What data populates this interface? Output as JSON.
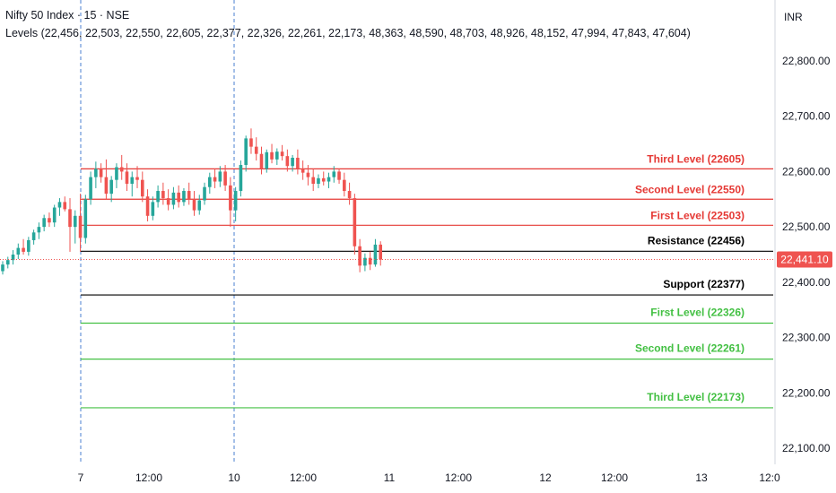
{
  "header": {
    "title": "Nifty 50 Index · 15 · NSE",
    "levels_text": "Levels (22,456, 22,503, 22,550, 22,605, 22,377, 22,326, 22,261, 22,173, 48,363, 48,590, 48,703, 48,926, 48,152, 47,994, 47,843, 47,604)"
  },
  "axis": {
    "currency": "INR"
  },
  "chart_data": {
    "type": "candlestick",
    "title": "Nifty 50 Index · 15 · NSE",
    "ylim": [
      22060,
      22870
    ],
    "y_ticks": [
      "22,800.00",
      "22,700.00",
      "22,600.00",
      "22,500.00",
      "22,400.00",
      "22,300.00",
      "22,200.00",
      "22,100.00"
    ],
    "y_tick_values": [
      22800,
      22700,
      22600,
      22500,
      22400,
      22300,
      22200,
      22100
    ],
    "x_ticks": [
      "7",
      "12:00",
      "10",
      "12:00",
      "11",
      "12:00",
      "12",
      "12:00",
      "13",
      "12:0"
    ],
    "session_separators": [
      "7",
      "10"
    ],
    "last_price": "22,441.10",
    "last_price_value": 22441.1,
    "colors": {
      "up": "#26a69a",
      "down": "#ef5350",
      "resistance": "#e53935",
      "support": "#43c043",
      "pivot": "#000000",
      "separator": "#4a7fd1"
    },
    "levels": [
      {
        "label": "Third Level (22605)",
        "value": 22605,
        "kind": "resistance"
      },
      {
        "label": "Second Level (22550)",
        "value": 22550,
        "kind": "resistance"
      },
      {
        "label": "First Level (22503)",
        "value": 22503,
        "kind": "resistance"
      },
      {
        "label": "Resistance (22456)",
        "value": 22456,
        "kind": "pivot"
      },
      {
        "label": "Support (22377)",
        "value": 22377,
        "kind": "pivot"
      },
      {
        "label": "First Level (22326)",
        "value": 22326,
        "kind": "support"
      },
      {
        "label": "Second Level (22261)",
        "value": 22261,
        "kind": "support"
      },
      {
        "label": "Third Level (22173)",
        "value": 22173,
        "kind": "support"
      }
    ],
    "candles": [
      [
        22420,
        22438,
        22414,
        22432
      ],
      [
        22432,
        22446,
        22425,
        22440
      ],
      [
        22440,
        22458,
        22432,
        22450
      ],
      [
        22450,
        22470,
        22442,
        22462
      ],
      [
        22462,
        22478,
        22450,
        22455
      ],
      [
        22455,
        22482,
        22448,
        22476
      ],
      [
        22476,
        22495,
        22468,
        22490
      ],
      [
        22490,
        22508,
        22478,
        22500
      ],
      [
        22500,
        22522,
        22492,
        22516
      ],
      [
        22516,
        22526,
        22500,
        22508
      ],
      [
        22508,
        22540,
        22500,
        22535
      ],
      [
        22535,
        22552,
        22520,
        22545
      ],
      [
        22545,
        22555,
        22528,
        22532
      ],
      [
        22532,
        22552,
        22455,
        22500
      ],
      [
        22500,
        22530,
        22470,
        22520
      ],
      [
        22520,
        22560,
        22455,
        22480
      ],
      [
        22480,
        22558,
        22470,
        22550
      ],
      [
        22550,
        22600,
        22540,
        22590
      ],
      [
        22590,
        22618,
        22570,
        22605
      ],
      [
        22605,
        22615,
        22580,
        22590
      ],
      [
        22590,
        22622,
        22550,
        22560
      ],
      [
        22560,
        22592,
        22545,
        22585
      ],
      [
        22585,
        22615,
        22570,
        22608
      ],
      [
        22608,
        22630,
        22585,
        22600
      ],
      [
        22600,
        22615,
        22565,
        22578
      ],
      [
        22578,
        22600,
        22555,
        22590
      ],
      [
        22590,
        22610,
        22570,
        22585
      ],
      [
        22585,
        22600,
        22545,
        22555
      ],
      [
        22555,
        22568,
        22510,
        22520
      ],
      [
        22520,
        22555,
        22512,
        22545
      ],
      [
        22545,
        22575,
        22535,
        22565
      ],
      [
        22565,
        22580,
        22540,
        22552
      ],
      [
        22552,
        22568,
        22530,
        22540
      ],
      [
        22540,
        22572,
        22532,
        22562
      ],
      [
        22562,
        22575,
        22535,
        22545
      ],
      [
        22545,
        22570,
        22538,
        22565
      ],
      [
        22565,
        22580,
        22540,
        22550
      ],
      [
        22550,
        22565,
        22520,
        22530
      ],
      [
        22530,
        22558,
        22522,
        22548
      ],
      [
        22548,
        22580,
        22540,
        22572
      ],
      [
        22572,
        22598,
        22560,
        22590
      ],
      [
        22590,
        22605,
        22570,
        22582
      ],
      [
        22582,
        22610,
        22572,
        22600
      ],
      [
        22600,
        22612,
        22565,
        22575
      ],
      [
        22575,
        22590,
        22500,
        22530
      ],
      [
        22530,
        22572,
        22510,
        22565
      ],
      [
        22565,
        22620,
        22555,
        22612
      ],
      [
        22612,
        22665,
        22600,
        22660
      ],
      [
        22660,
        22678,
        22632,
        22645
      ],
      [
        22645,
        22662,
        22620,
        22632
      ],
      [
        22632,
        22645,
        22595,
        22605
      ],
      [
        22605,
        22640,
        22598,
        22635
      ],
      [
        22635,
        22650,
        22615,
        22622
      ],
      [
        22622,
        22642,
        22612,
        22636
      ],
      [
        22636,
        22648,
        22620,
        22628
      ],
      [
        22628,
        22640,
        22600,
        22610
      ],
      [
        22610,
        22630,
        22600,
        22625
      ],
      [
        22625,
        22640,
        22595,
        22605
      ],
      [
        22605,
        22620,
        22585,
        22598
      ],
      [
        22598,
        22612,
        22575,
        22590
      ],
      [
        22590,
        22605,
        22565,
        22578
      ],
      [
        22578,
        22595,
        22570,
        22588
      ],
      [
        22588,
        22600,
        22575,
        22582
      ],
      [
        22582,
        22598,
        22570,
        22590
      ],
      [
        22590,
        22610,
        22580,
        22600
      ],
      [
        22600,
        22605,
        22578,
        22585
      ],
      [
        22585,
        22598,
        22555,
        22565
      ],
      [
        22565,
        22580,
        22540,
        22552
      ],
      [
        22552,
        22560,
        22450,
        22465
      ],
      [
        22465,
        22478,
        22418,
        22430
      ],
      [
        22430,
        22452,
        22420,
        22444
      ],
      [
        22444,
        22455,
        22422,
        22432
      ],
      [
        22432,
        22478,
        22428,
        22468
      ],
      [
        22468,
        22474,
        22430,
        22441
      ]
    ]
  }
}
